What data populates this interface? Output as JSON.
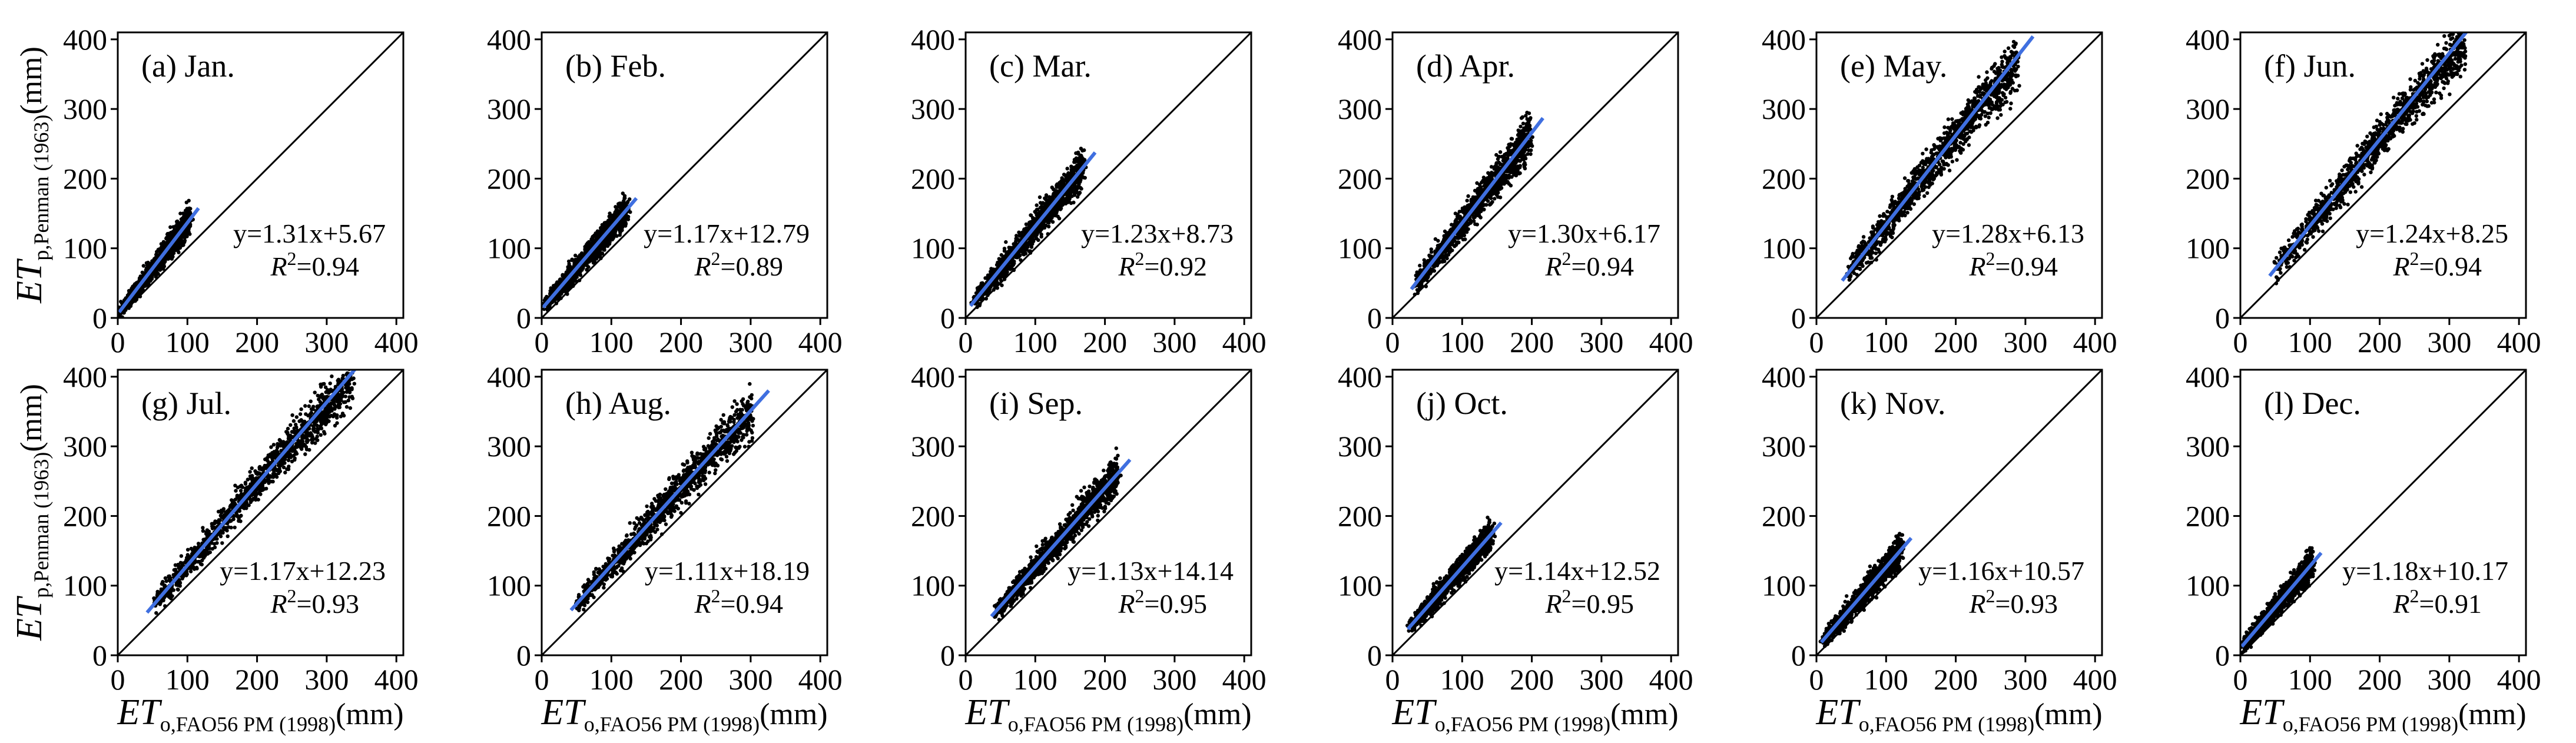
{
  "chart_data": {
    "type": "scatter",
    "xlabel": {
      "main": "ET",
      "sub": "o,FAO56 PM (1998)",
      "unit": "(mm)"
    },
    "ylabel": {
      "main": "ET",
      "sub": "p,Penman (1963)",
      "unit": "(mm)"
    },
    "xlim": [
      0,
      410
    ],
    "ylim": [
      0,
      410
    ],
    "ticks": [
      0,
      100,
      200,
      300,
      400
    ],
    "ref_line": "1:1",
    "r2_label": "R",
    "panels": [
      {
        "label": "(a) Jan.",
        "slope": 1.31,
        "intercept": 5.67,
        "equation": "y=1.31x+5.67",
        "r2": "=0.94",
        "x_range": [
          0,
          110
        ],
        "spread": 18
      },
      {
        "label": "(b) Feb.",
        "slope": 1.17,
        "intercept": 12.79,
        "equation": "y=1.17x+12.79",
        "r2": "=0.89",
        "x_range": [
          0,
          130
        ],
        "spread": 20
      },
      {
        "label": "(c) Mar.",
        "slope": 1.23,
        "intercept": 8.73,
        "equation": "y=1.23x+8.73",
        "r2": "=0.92",
        "x_range": [
          5,
          180
        ],
        "spread": 24
      },
      {
        "label": "(d) Apr.",
        "slope": 1.3,
        "intercept": 6.17,
        "equation": "y=1.30x+6.17",
        "r2": "=0.94",
        "x_range": [
          25,
          210
        ],
        "spread": 26
      },
      {
        "label": "(e) May.",
        "slope": 1.28,
        "intercept": 6.13,
        "equation": "y=1.28x+6.13",
        "r2": "=0.94",
        "x_range": [
          35,
          305
        ],
        "spread": 32
      },
      {
        "label": "(f) Jun.",
        "slope": 1.24,
        "intercept": 8.25,
        "equation": "y=1.24x+8.25",
        "r2": "=0.94",
        "x_range": [
          40,
          340
        ],
        "spread": 32
      },
      {
        "label": "(g) Jul.",
        "slope": 1.17,
        "intercept": 12.23,
        "equation": "y=1.17x+12.23",
        "r2": "=0.93",
        "x_range": [
          40,
          355
        ],
        "spread": 30
      },
      {
        "label": "(h) Aug.",
        "slope": 1.11,
        "intercept": 18.19,
        "equation": "y=1.11x+18.19",
        "r2": "=0.94",
        "x_range": [
          40,
          320
        ],
        "spread": 30
      },
      {
        "label": "(i) Sep.",
        "slope": 1.13,
        "intercept": 14.14,
        "equation": "y=1.13x+14.14",
        "r2": "=0.95",
        "x_range": [
          35,
          230
        ],
        "spread": 24
      },
      {
        "label": "(j) Oct.",
        "slope": 1.14,
        "intercept": 12.52,
        "equation": "y=1.14x+12.52",
        "r2": "=0.95",
        "x_range": [
          20,
          150
        ],
        "spread": 20
      },
      {
        "label": "(k) Nov.",
        "slope": 1.16,
        "intercept": 10.57,
        "equation": "y=1.16x+10.57",
        "r2": "=0.93",
        "x_range": [
          5,
          130
        ],
        "spread": 20
      },
      {
        "label": "(l) Dec.",
        "slope": 1.18,
        "intercept": 10.17,
        "equation": "y=1.18x+10.17",
        "r2": "=0.91",
        "x_range": [
          0,
          110
        ],
        "spread": 18
      }
    ]
  },
  "colors": {
    "points": "#000000",
    "fit_line": "#3f6fe0",
    "ref_line": "#000000",
    "axes": "#000000"
  }
}
